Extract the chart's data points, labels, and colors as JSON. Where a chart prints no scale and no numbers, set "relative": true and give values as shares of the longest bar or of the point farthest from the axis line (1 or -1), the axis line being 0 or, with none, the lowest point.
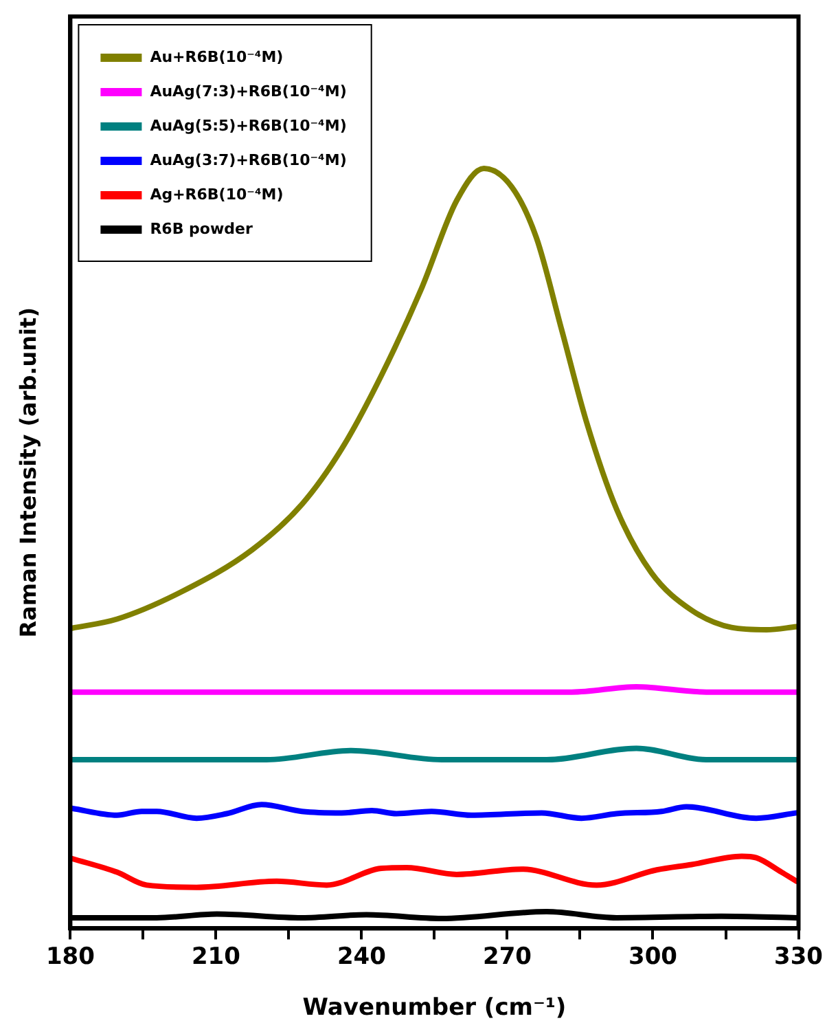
{
  "chart_data": {
    "type": "line",
    "xlabel": "Wavenumber (cm⁻¹)",
    "ylabel": "Raman Intensity (arb.unit)",
    "relative": true,
    "xlim": [
      180,
      330
    ],
    "xticks": [
      180,
      {
        "value": 195,
        "label": null
      },
      210,
      {
        "value": 225,
        "label": null
      },
      240,
      {
        "value": 255,
        "label": null
      },
      270,
      {
        "value": 285,
        "label": null
      },
      300,
      {
        "value": 315,
        "label": null
      },
      330
    ],
    "legend": "top left",
    "grid": false,
    "marker": "none",
    "line_style": "solid",
    "series": [
      {
        "name": "Au+R6B(10⁻⁴M)",
        "color": "#808000",
        "x": [
          180.3,
          189.6,
          202.9,
          217.4,
          227.7,
          235.9,
          244.1,
          252.4,
          259.6,
          265.2,
          270.9,
          276.0,
          281.2,
          286.3,
          292.5,
          299.7,
          307.9,
          316.2,
          323.4,
          329.6
        ],
        "values": [
          0.395,
          0.407,
          0.443,
          0.498,
          0.558,
          0.631,
          0.728,
          0.843,
          0.958,
          1.0,
          0.976,
          0.909,
          0.788,
          0.667,
          0.552,
          0.468,
          0.419,
          0.396,
          0.393,
          0.397
        ]
      },
      {
        "name": "AuAg(7:3)+R6B(10⁻⁴M)",
        "color": "#ff00ff",
        "x": [
          180.3,
          283.3,
          296.6,
          311.0,
          329.6
        ],
        "values": [
          0.311,
          0.311,
          0.318,
          0.311,
          0.311
        ]
      },
      {
        "name": "AuAg(5:5)+R6B(10⁻⁴M)",
        "color": "#008080",
        "x": [
          180.3,
          220.4,
          237.9,
          256.5,
          278.1,
          296.6,
          311.0,
          329.6
        ],
        "values": [
          0.222,
          0.222,
          0.234,
          0.222,
          0.222,
          0.237,
          0.222,
          0.222
        ]
      },
      {
        "name": "AuAg(3:7)+R6B(10⁻⁴M)",
        "color": "#0000ff",
        "x": [
          180.3,
          189.6,
          194.7,
          197.8,
          206.0,
          212.2,
          219.4,
          227.7,
          235.9,
          242.1,
          247.2,
          254.4,
          262.6,
          277.1,
          285.3,
          292.5,
          301.8,
          306.9,
          321.3,
          329.6
        ],
        "values": [
          0.158,
          0.149,
          0.154,
          0.154,
          0.145,
          0.151,
          0.163,
          0.154,
          0.152,
          0.155,
          0.151,
          0.154,
          0.149,
          0.152,
          0.145,
          0.151,
          0.154,
          0.16,
          0.145,
          0.152
        ]
      },
      {
        "name": "Ag+R6B(10⁻⁴M)",
        "color": "#ff0000",
        "x": [
          180.3,
          189.6,
          195.7,
          206.0,
          222.5,
          232.8,
          244.1,
          249.3,
          259.6,
          273.0,
          288.4,
          300.8,
          308.0,
          318.3,
          321.3,
          326.5,
          329.6
        ],
        "values": [
          0.092,
          0.074,
          0.057,
          0.054,
          0.062,
          0.057,
          0.079,
          0.08,
          0.071,
          0.078,
          0.057,
          0.077,
          0.084,
          0.095,
          0.093,
          0.074,
          0.062
        ]
      },
      {
        "name": "R6B powder",
        "color": "#000000",
        "x": [
          180.3,
          197.8,
          210.2,
          227.7,
          241.0,
          256.5,
          278.1,
          292.5,
          314.1,
          329.6
        ],
        "values": [
          0.014,
          0.014,
          0.019,
          0.014,
          0.018,
          0.013,
          0.022,
          0.014,
          0.016,
          0.014
        ]
      }
    ]
  }
}
